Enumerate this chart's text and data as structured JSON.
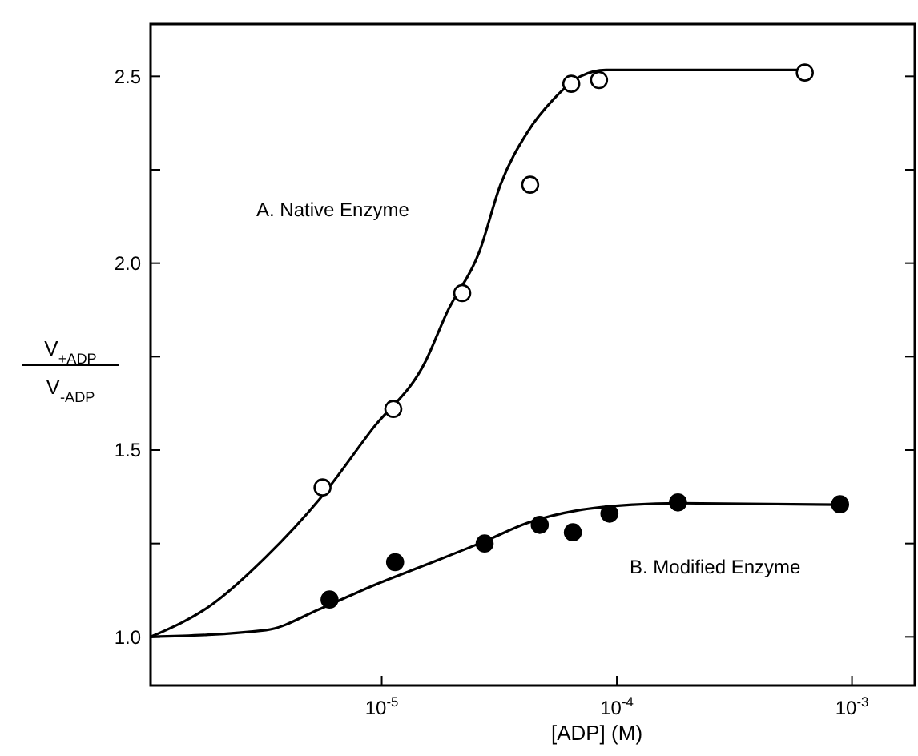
{
  "chart_data": {
    "type": "scatter",
    "xlabel": "[ADP] (M)",
    "ylabel": "V$_{+ADP}$ V$_{-ADP}$",
    "log": "x",
    "xlim": [
      1.04e-06,
      0.00185
    ],
    "ylim": [
      0.87,
      2.64
    ],
    "xticks": [
      {
        "value": 1e-05,
        "label": "10$^{-5}$"
      },
      {
        "value": 0.0001,
        "label": "10$^{-4}$"
      },
      {
        "value": 0.001,
        "label": "10$^{-3}$"
      }
    ],
    "yticks": [
      {
        "value": 1.0,
        "label": "1.0"
      },
      {
        "value": 1.25,
        "label": null
      },
      {
        "value": 1.5,
        "label": "1.5"
      },
      {
        "value": 1.75,
        "label": null
      },
      {
        "value": 2.0,
        "label": "2.0"
      },
      {
        "value": 2.25,
        "label": null
      },
      {
        "value": 2.5,
        "label": "2.5"
      }
    ],
    "grid": false,
    "annotations": [
      "A. Native Enzyme",
      "B. Modified Enzyme"
    ],
    "series": [
      {
        "type": "line",
        "color": "#000000",
        "line_style": "solid",
        "x": [
          1.04e-06,
          1.91e-06,
          3.22e-06,
          5.43e-06,
          9.14e-06,
          1.54e-05,
          1.9e-05,
          2.6e-05,
          3.2e-05,
          4.16e-05,
          5.4e-05,
          7e-05,
          9e-05,
          0.00063
        ],
        "values": [
          1.0,
          1.088,
          1.214,
          1.368,
          1.557,
          1.739,
          1.87,
          2.03,
          2.21,
          2.35,
          2.44,
          2.5,
          2.517,
          2.517
        ]
      },
      {
        "type": "line",
        "color": "#000000",
        "line_style": "solid",
        "x": [
          1.04e-06,
          3.22e-06,
          5.43e-06,
          9.14e-06,
          1.54e-05,
          2.74e-05,
          4.16e-05,
          7e-05,
          0.000117,
          0.000182,
          0.00089
        ],
        "values": [
          1.0,
          1.018,
          1.074,
          1.137,
          1.193,
          1.256,
          1.305,
          1.34,
          1.354,
          1.358,
          1.354
        ]
      },
      {
        "color": "#ffffff",
        "marker": "circle",
        "x": [
          5.6e-06,
          1.12e-05,
          2.2e-05,
          4.28e-05,
          6.4e-05,
          8.4e-05,
          0.00063
        ],
        "values": [
          1.4,
          1.61,
          1.92,
          2.21,
          2.48,
          2.49,
          2.51
        ]
      },
      {
        "color": "#000000",
        "marker": "circle",
        "x": [
          6e-06,
          1.14e-05,
          2.74e-05,
          4.7e-05,
          6.5e-05,
          9.3e-05,
          0.000182,
          0.00089
        ],
        "values": [
          1.1,
          1.2,
          1.25,
          1.3,
          1.28,
          1.33,
          1.36,
          1.355
        ]
      }
    ]
  }
}
